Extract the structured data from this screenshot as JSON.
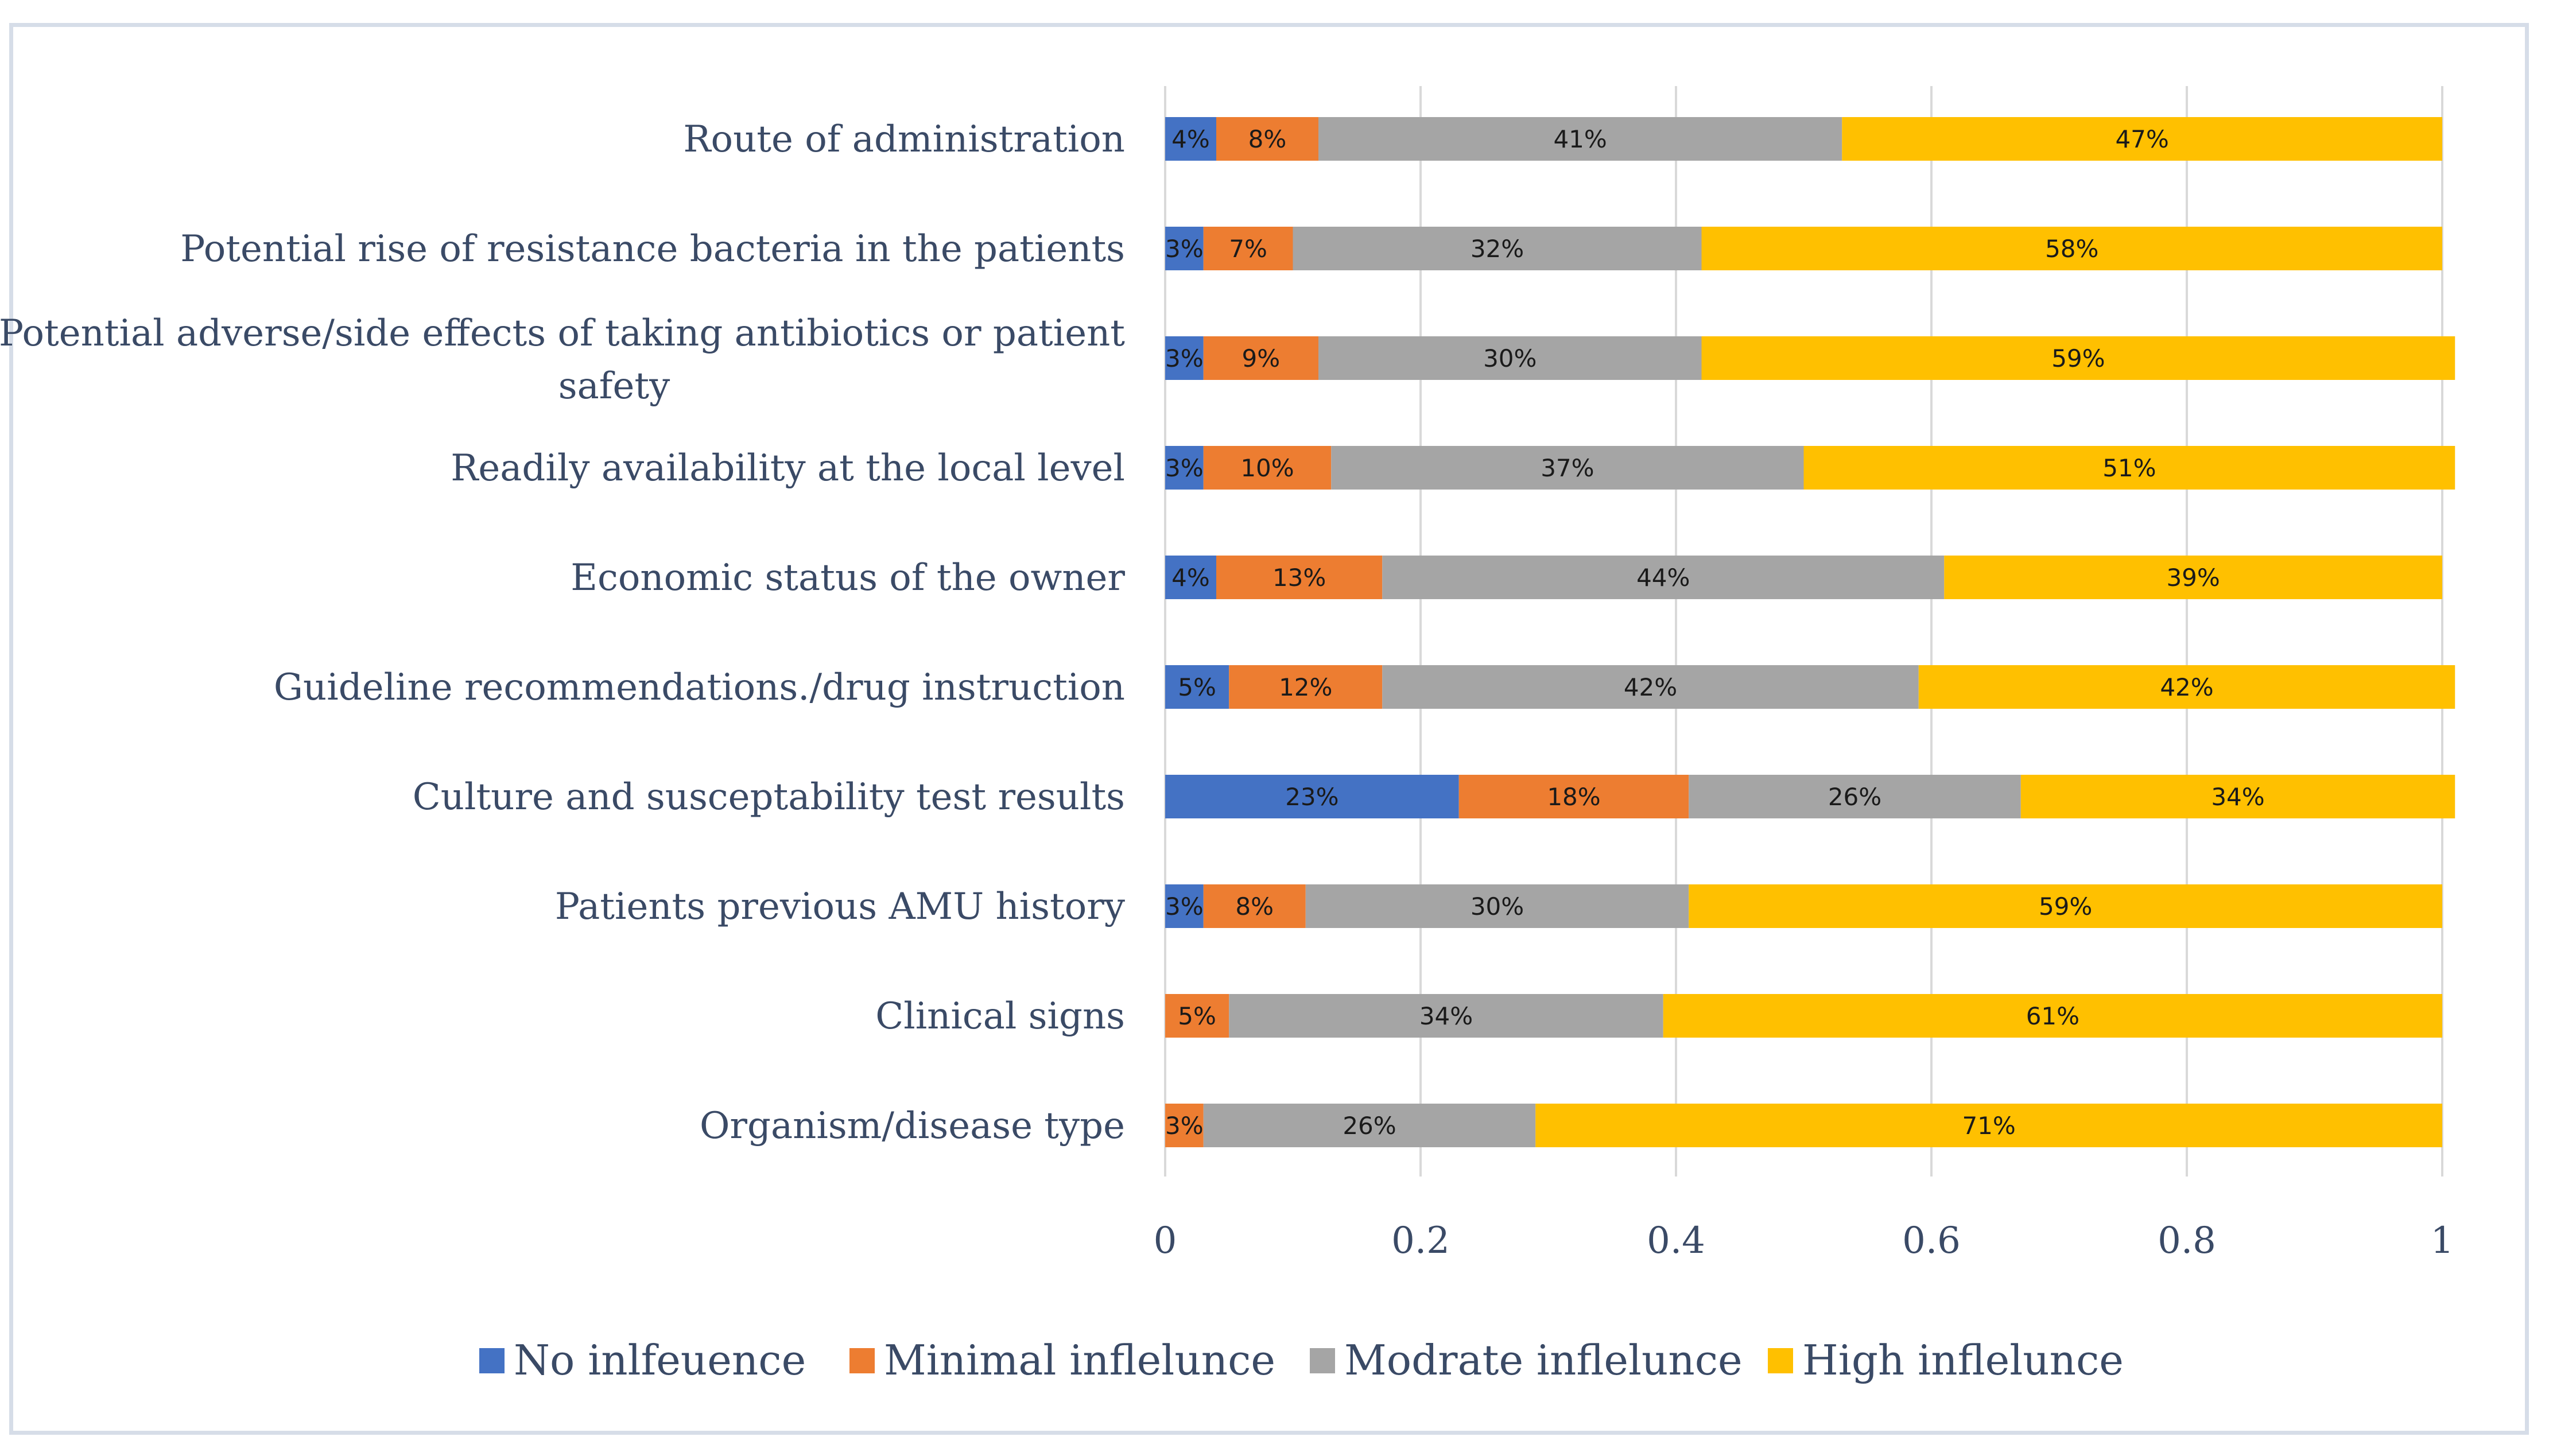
{
  "chart_data": {
    "type": "bar",
    "orientation": "horizontal",
    "stacked": true,
    "title": "",
    "xlabel": "",
    "ylabel": "",
    "xlim": [
      0,
      1
    ],
    "xticks": [
      0,
      0.2,
      0.4,
      0.6,
      0.8,
      1
    ],
    "xtick_labels": [
      "0",
      "0.2",
      "0.4",
      "0.6",
      "0.8",
      "1"
    ],
    "grid": true,
    "legend_position": "bottom",
    "categories": [
      {
        "lines": [
          "Route of administration"
        ]
      },
      {
        "lines": [
          "Potential rise of resistance bacteria in the patients"
        ]
      },
      {
        "lines": [
          "Potential adverse/side effects of taking antibiotics or patient",
          "safety"
        ]
      },
      {
        "lines": [
          "Readily availability at the local level"
        ]
      },
      {
        "lines": [
          "Economic status of the owner"
        ]
      },
      {
        "lines": [
          "Guideline recommendations./drug instruction"
        ]
      },
      {
        "lines": [
          "Culture and susceptability test results"
        ]
      },
      {
        "lines": [
          "Patients previous AMU history"
        ]
      },
      {
        "lines": [
          "Clinical signs"
        ]
      },
      {
        "lines": [
          "Organism/disease type"
        ]
      }
    ],
    "series": [
      {
        "name": "No inlfeuence",
        "color": "#4472c4",
        "values": [
          0.04,
          0.03,
          0.03,
          0.03,
          0.04,
          0.05,
          0.23,
          0.03,
          0,
          0
        ],
        "labels": [
          "4%",
          "3%",
          "3%",
          "3%",
          "4%",
          "5%",
          "23%",
          "3%",
          "",
          ""
        ]
      },
      {
        "name": "Minimal inflelunce",
        "color": "#ed7d31",
        "values": [
          0.08,
          0.07,
          0.09,
          0.1,
          0.13,
          0.12,
          0.18,
          0.08,
          0.05,
          0.03
        ],
        "labels": [
          "8%",
          "7%",
          "9%",
          "10%",
          "13%",
          "12%",
          "18%",
          "8%",
          "5%",
          "3%"
        ]
      },
      {
        "name": "Modrate inflelunce",
        "color": "#a5a5a5",
        "values": [
          0.41,
          0.32,
          0.3,
          0.37,
          0.44,
          0.42,
          0.26,
          0.3,
          0.34,
          0.26
        ],
        "labels": [
          "41%",
          "32%",
          "30%",
          "37%",
          "44%",
          "42%",
          "26%",
          "30%",
          "34%",
          "26%"
        ]
      },
      {
        "name": "High inflelunce",
        "color": "#ffc000",
        "values": [
          0.47,
          0.58,
          0.59,
          0.51,
          0.39,
          0.42,
          0.34,
          0.59,
          0.61,
          0.71
        ],
        "labels": [
          "47%",
          "58%",
          "59%",
          "51%",
          "39%",
          "42%",
          "34%",
          "59%",
          "61%",
          "71%"
        ]
      }
    ]
  }
}
